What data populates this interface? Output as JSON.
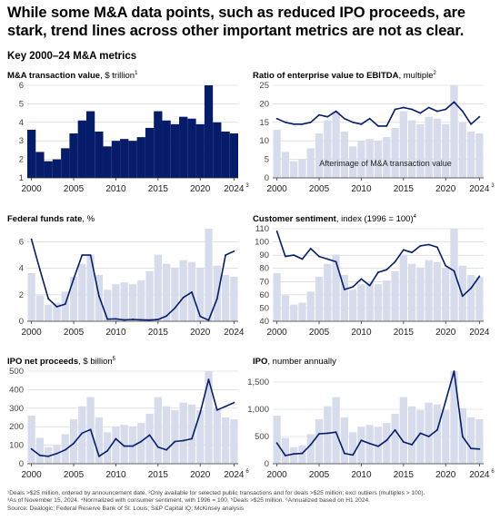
{
  "header": {
    "title": "While some M&A data points, such as reduced IPO proceeds, are stark, trend lines across other important metrics are not as clear.",
    "subtitle": "Key 2000–24 M&A metrics"
  },
  "colors": {
    "primary": "#051c6b",
    "afterimage": "#d7dcec",
    "gridline": "#cfcfcf",
    "text": "#000000"
  },
  "afterimage_label": "Afterimage of M&A transaction value",
  "footnotes": {
    "line1": "¹Deals >$25 million, ordered by announcement date. ²Only available for selected public transactions and for deals >$25 million; excl outliers (multiples > 100).",
    "line2": "³As of November 15, 2024. ⁴Normalized with consumer sentiment, with 1996 = 100. ⁵Deals >$25 million. ⁶Annualized based on H1 2024.",
    "line3": "Source: Dealogic; Federal Reserve Bank of St. Louis; S&P Capital IQ; McKinsey analysis"
  },
  "chart_data": [
    {
      "type": "bar",
      "title": "M&A transaction value",
      "unit_label": "$ trillion",
      "footnote_marker": "1",
      "x": [
        2000,
        2001,
        2002,
        2003,
        2004,
        2005,
        2006,
        2007,
        2008,
        2009,
        2010,
        2011,
        2012,
        2013,
        2014,
        2015,
        2016,
        2017,
        2018,
        2019,
        2020,
        2021,
        2022,
        2023,
        2024
      ],
      "values": [
        3.6,
        2.4,
        1.9,
        2.0,
        2.6,
        3.4,
        4.1,
        4.6,
        3.5,
        2.7,
        3.0,
        3.1,
        3.0,
        3.2,
        3.7,
        4.6,
        4.1,
        3.9,
        4.3,
        4.2,
        3.9,
        6.0,
        4.0,
        3.5,
        3.4
      ],
      "ylim": [
        1,
        6
      ],
      "yticks": [
        1,
        2,
        3,
        4,
        5,
        6
      ],
      "xticks": [
        "2000",
        "2005",
        "2010",
        "2015",
        "2020",
        "2024"
      ],
      "last_tick_marker": "3"
    },
    {
      "type": "line",
      "title": "Ratio of enterprise value to EBITDA",
      "unit_label": "multiple",
      "footnote_marker": "2",
      "x": [
        2000,
        2001,
        2002,
        2003,
        2004,
        2005,
        2006,
        2007,
        2008,
        2009,
        2010,
        2011,
        2012,
        2013,
        2014,
        2015,
        2016,
        2017,
        2018,
        2019,
        2020,
        2021,
        2022,
        2023,
        2024
      ],
      "series": [
        {
          "values": [
            16,
            15,
            14.5,
            14.5,
            15,
            17,
            16.5,
            18,
            16,
            15,
            14.5,
            16,
            14,
            14,
            18.5,
            19,
            18.5,
            17.5,
            19,
            18,
            18.5,
            20.5,
            18,
            14.5,
            16.5
          ]
        }
      ],
      "ylim": [
        0,
        25
      ],
      "yticks": [
        0,
        5,
        10,
        15,
        20,
        25
      ],
      "xticks": [
        "2000",
        "2005",
        "2010",
        "2015",
        "2020",
        "2024"
      ],
      "last_tick_marker": "3",
      "afterimage": true
    },
    {
      "type": "line",
      "title": "Federal funds rate",
      "unit_label": "%",
      "footnote_marker": "",
      "x": [
        2000,
        2001,
        2002,
        2003,
        2004,
        2005,
        2006,
        2007,
        2008,
        2009,
        2010,
        2011,
        2012,
        2013,
        2014,
        2015,
        2016,
        2017,
        2018,
        2019,
        2020,
        2021,
        2022,
        2023,
        2024
      ],
      "series": [
        {
          "values": [
            6.2,
            3.9,
            1.7,
            1.1,
            1.3,
            3.2,
            5.0,
            5.0,
            1.9,
            0.16,
            0.18,
            0.1,
            0.14,
            0.11,
            0.09,
            0.13,
            0.4,
            1.0,
            1.8,
            2.2,
            0.37,
            0.08,
            1.7,
            5.0,
            5.3
          ]
        }
      ],
      "ylim": [
        0,
        7
      ],
      "yticks": [
        0,
        2,
        4,
        6
      ],
      "xticks": [
        "2000",
        "2005",
        "2010",
        "2015",
        "2020",
        "2024"
      ],
      "afterimage": true
    },
    {
      "type": "line",
      "title": "Customer sentiment",
      "unit_label": "index (1996 = 100)",
      "footnote_marker": "4",
      "x": [
        2000,
        2001,
        2002,
        2003,
        2004,
        2005,
        2006,
        2007,
        2008,
        2009,
        2010,
        2011,
        2012,
        2013,
        2014,
        2015,
        2016,
        2017,
        2018,
        2019,
        2020,
        2021,
        2022,
        2023,
        2024
      ],
      "series": [
        {
          "values": [
            108,
            89,
            90,
            87,
            95,
            89,
            87,
            85,
            64,
            66,
            72,
            67,
            77,
            79,
            85,
            94,
            92,
            97,
            98,
            96,
            82,
            78,
            59,
            65,
            74
          ]
        }
      ],
      "ylim": [
        40,
        110
      ],
      "yticks": [
        40,
        50,
        60,
        70,
        80,
        90,
        100,
        110
      ],
      "xticks": [
        "2000",
        "2005",
        "2010",
        "2015",
        "2020",
        "2024"
      ],
      "afterimage": true
    },
    {
      "type": "line",
      "title": "IPO net proceeds",
      "unit_label": "$ billion",
      "footnote_marker": "5",
      "x": [
        2000,
        2001,
        2002,
        2003,
        2004,
        2005,
        2006,
        2007,
        2008,
        2009,
        2010,
        2011,
        2012,
        2013,
        2014,
        2015,
        2016,
        2017,
        2018,
        2019,
        2020,
        2021,
        2022,
        2023,
        2024
      ],
      "series": [
        {
          "values": [
            80,
            45,
            40,
            55,
            75,
            110,
            165,
            185,
            40,
            70,
            135,
            95,
            95,
            120,
            155,
            90,
            75,
            120,
            125,
            135,
            275,
            455,
            290,
            310,
            330
          ]
        }
      ],
      "ylim": [
        0,
        500
      ],
      "yticks": [
        0,
        100,
        200,
        300,
        400,
        500
      ],
      "xticks": [
        "2000",
        "2005",
        "2010",
        "2015",
        "2020",
        "2024"
      ],
      "last_tick_marker": "6",
      "afterimage": true
    },
    {
      "type": "line",
      "title": "IPO",
      "unit_label": "number annually",
      "footnote_marker": "",
      "x": [
        2000,
        2001,
        2002,
        2003,
        2004,
        2005,
        2006,
        2007,
        2008,
        2009,
        2010,
        2011,
        2012,
        2013,
        2014,
        2015,
        2016,
        2017,
        2018,
        2019,
        2020,
        2021,
        2022,
        2023,
        2024
      ],
      "series": [
        {
          "values": [
            380,
            150,
            180,
            190,
            350,
            550,
            560,
            580,
            190,
            160,
            430,
            370,
            320,
            430,
            620,
            400,
            350,
            560,
            500,
            620,
            1150,
            1700,
            500,
            280,
            270
          ]
        }
      ],
      "ylim": [
        0,
        1700
      ],
      "yticks": [
        0,
        500,
        1000,
        1500
      ],
      "ytick_labels": [
        "0",
        "500",
        "1,000",
        "1,500"
      ],
      "xticks": [
        "2000",
        "2005",
        "2010",
        "2015",
        "2020",
        "2024"
      ],
      "last_tick_marker": "6",
      "afterimage": true
    }
  ]
}
